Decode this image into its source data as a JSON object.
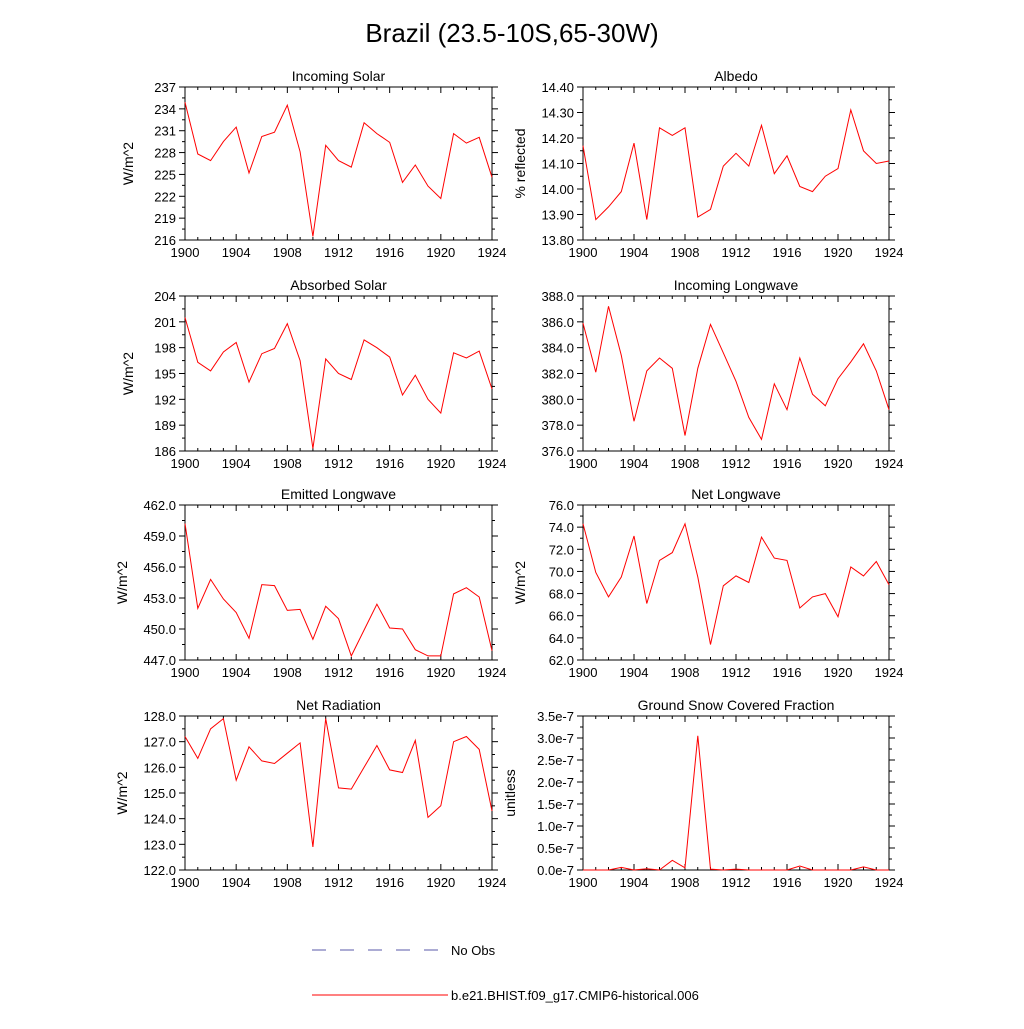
{
  "figure": {
    "title": "Brazil (23.5-10S,65-30W)",
    "legend": [
      {
        "label": "No Obs",
        "color": "#5a5aa8",
        "style": "dashed"
      },
      {
        "label": "b.e21.BHIST.f09_g17.CMIP6-historical.006",
        "color": "#ff0000",
        "style": "solid"
      }
    ]
  },
  "chart_data": [
    {
      "type": "line",
      "title": "Incoming Solar",
      "ylabel": "W/m^2",
      "xlim": [
        1900,
        1924
      ],
      "ylim": [
        216,
        237
      ],
      "xticks": [
        "1900",
        "1904",
        "1908",
        "1912",
        "1916",
        "1920",
        "1924"
      ],
      "yticks": [
        "216",
        "219",
        "222",
        "225",
        "228",
        "231",
        "234",
        "237"
      ],
      "x": [
        1900,
        1901,
        1902,
        1903,
        1904,
        1905,
        1906,
        1907,
        1908,
        1909,
        1910,
        1911,
        1912,
        1913,
        1914,
        1915,
        1916,
        1917,
        1918,
        1919,
        1920,
        1921,
        1922,
        1923,
        1924
      ],
      "series": [
        {
          "name": "b.e21.BHIST.f09_g17.CMIP6-historical.006",
          "color": "#ff0000",
          "values": [
            234.9,
            227.8,
            226.9,
            229.5,
            231.5,
            225.2,
            230.2,
            230.8,
            234.5,
            228.1,
            216.5,
            229.0,
            226.9,
            226.0,
            232.1,
            230.6,
            229.4,
            223.9,
            226.3,
            223.4,
            221.7,
            230.6,
            229.3,
            230.1,
            224.6
          ]
        }
      ]
    },
    {
      "type": "line",
      "title": "Albedo",
      "ylabel": "% reflected",
      "xlim": [
        1900,
        1924
      ],
      "ylim": [
        13.8,
        14.4
      ],
      "xticks": [
        "1900",
        "1904",
        "1908",
        "1912",
        "1916",
        "1920",
        "1924"
      ],
      "yticks": [
        "13.80",
        "13.90",
        "14.00",
        "14.10",
        "14.20",
        "14.30",
        "14.40"
      ],
      "x": [
        1900,
        1901,
        1902,
        1903,
        1904,
        1905,
        1906,
        1907,
        1908,
        1909,
        1910,
        1911,
        1912,
        1913,
        1914,
        1915,
        1916,
        1917,
        1918,
        1919,
        1920,
        1921,
        1922,
        1923,
        1924
      ],
      "series": [
        {
          "name": "b.e21.BHIST.f09_g17.CMIP6-historical.006",
          "color": "#ff0000",
          "values": [
            14.17,
            13.88,
            13.93,
            13.99,
            14.18,
            13.88,
            14.24,
            14.21,
            14.24,
            13.89,
            13.92,
            14.09,
            14.14,
            14.09,
            14.25,
            14.06,
            14.13,
            14.01,
            13.99,
            14.05,
            14.08,
            14.31,
            14.15,
            14.1,
            14.11
          ]
        }
      ]
    },
    {
      "type": "line",
      "title": "Absorbed Solar",
      "ylabel": "W/m^2",
      "xlim": [
        1900,
        1924
      ],
      "ylim": [
        186,
        204
      ],
      "xticks": [
        "1900",
        "1904",
        "1908",
        "1912",
        "1916",
        "1920",
        "1924"
      ],
      "yticks": [
        "186",
        "189",
        "192",
        "195",
        "198",
        "201",
        "204"
      ],
      "x": [
        1900,
        1901,
        1902,
        1903,
        1904,
        1905,
        1906,
        1907,
        1908,
        1909,
        1910,
        1911,
        1912,
        1913,
        1914,
        1915,
        1916,
        1917,
        1918,
        1919,
        1920,
        1921,
        1922,
        1923,
        1924
      ],
      "series": [
        {
          "name": "b.e21.BHIST.f09_g17.CMIP6-historical.006",
          "color": "#ff0000",
          "values": [
            201.5,
            196.3,
            195.3,
            197.5,
            198.6,
            194.0,
            197.3,
            197.9,
            200.8,
            196.5,
            186.3,
            196.7,
            195.0,
            194.3,
            198.9,
            198.0,
            196.9,
            192.5,
            194.8,
            192.0,
            190.4,
            197.4,
            196.8,
            197.6,
            193.2
          ]
        }
      ]
    },
    {
      "type": "line",
      "title": "Incoming Longwave",
      "ylabel": "",
      "xlim": [
        1900,
        1924
      ],
      "ylim": [
        376,
        388
      ],
      "xticks": [
        "1900",
        "1904",
        "1908",
        "1912",
        "1916",
        "1920",
        "1924"
      ],
      "yticks": [
        "376.0",
        "378.0",
        "380.0",
        "382.0",
        "384.0",
        "386.0",
        "388.0"
      ],
      "x": [
        1900,
        1901,
        1902,
        1903,
        1904,
        1905,
        1906,
        1907,
        1908,
        1909,
        1910,
        1911,
        1912,
        1913,
        1914,
        1915,
        1916,
        1917,
        1918,
        1919,
        1920,
        1921,
        1922,
        1923,
        1924
      ],
      "series": [
        {
          "name": "b.e21.BHIST.f09_g17.CMIP6-historical.006",
          "color": "#ff0000",
          "values": [
            385.9,
            382.1,
            387.2,
            383.4,
            378.3,
            382.2,
            383.2,
            382.4,
            377.2,
            382.4,
            385.8,
            383.6,
            381.4,
            378.6,
            376.9,
            381.2,
            379.2,
            383.2,
            380.4,
            379.5,
            381.6,
            382.9,
            384.3,
            382.2,
            379.2
          ]
        }
      ]
    },
    {
      "type": "line",
      "title": "Emitted Longwave",
      "ylabel": "W/m^2",
      "xlim": [
        1900,
        1924
      ],
      "ylim": [
        447,
        462
      ],
      "xticks": [
        "1900",
        "1904",
        "1908",
        "1912",
        "1916",
        "1920",
        "1924"
      ],
      "yticks": [
        "447.0",
        "450.0",
        "453.0",
        "456.0",
        "459.0",
        "462.0"
      ],
      "x": [
        1900,
        1901,
        1902,
        1903,
        1904,
        1905,
        1906,
        1907,
        1908,
        1909,
        1910,
        1911,
        1912,
        1913,
        1914,
        1915,
        1916,
        1917,
        1918,
        1919,
        1920,
        1921,
        1922,
        1923,
        1924
      ],
      "series": [
        {
          "name": "b.e21.BHIST.f09_g17.CMIP6-historical.006",
          "color": "#ff0000",
          "values": [
            460.2,
            452.0,
            454.8,
            452.9,
            451.6,
            449.1,
            454.3,
            454.2,
            451.8,
            451.9,
            449.0,
            452.2,
            451.0,
            447.4,
            449.9,
            452.4,
            450.1,
            450.0,
            448.0,
            447.4,
            447.4,
            453.4,
            454.0,
            453.1,
            447.9
          ]
        }
      ]
    },
    {
      "type": "line",
      "title": "Net Longwave",
      "ylabel": "W/m^2",
      "xlim": [
        1900,
        1924
      ],
      "ylim": [
        62,
        76
      ],
      "xticks": [
        "1900",
        "1904",
        "1908",
        "1912",
        "1916",
        "1920",
        "1924"
      ],
      "yticks": [
        "62.0",
        "64.0",
        "66.0",
        "68.0",
        "70.0",
        "72.0",
        "74.0",
        "76.0"
      ],
      "x": [
        1900,
        1901,
        1902,
        1903,
        1904,
        1905,
        1906,
        1907,
        1908,
        1909,
        1910,
        1911,
        1912,
        1913,
        1914,
        1915,
        1916,
        1917,
        1918,
        1919,
        1920,
        1921,
        1922,
        1923,
        1924
      ],
      "series": [
        {
          "name": "b.e21.BHIST.f09_g17.CMIP6-historical.006",
          "color": "#ff0000",
          "values": [
            74.3,
            69.9,
            67.7,
            69.5,
            73.2,
            67.1,
            71.0,
            71.7,
            74.3,
            69.5,
            63.4,
            68.7,
            69.6,
            69.0,
            73.1,
            71.2,
            71.0,
            66.7,
            67.7,
            68.0,
            65.9,
            70.4,
            69.6,
            70.9,
            68.8
          ]
        }
      ]
    },
    {
      "type": "line",
      "title": "Net Radiation",
      "ylabel": "W/m^2",
      "xlim": [
        1900,
        1924
      ],
      "ylim": [
        122,
        128
      ],
      "xticks": [
        "1900",
        "1904",
        "1908",
        "1912",
        "1916",
        "1920",
        "1924"
      ],
      "yticks": [
        "122.0",
        "123.0",
        "124.0",
        "125.0",
        "126.0",
        "127.0",
        "128.0"
      ],
      "x": [
        1900,
        1901,
        1902,
        1903,
        1904,
        1905,
        1906,
        1907,
        1908,
        1909,
        1910,
        1911,
        1912,
        1913,
        1914,
        1915,
        1916,
        1917,
        1918,
        1919,
        1920,
        1921,
        1922,
        1923,
        1924
      ],
      "series": [
        {
          "name": "b.e21.BHIST.f09_g17.CMIP6-historical.006",
          "color": "#ff0000",
          "values": [
            127.2,
            126.35,
            127.5,
            127.9,
            125.5,
            126.8,
            126.25,
            126.15,
            126.55,
            126.95,
            122.9,
            127.9,
            125.2,
            125.15,
            126.0,
            126.85,
            125.9,
            125.8,
            127.05,
            124.05,
            124.5,
            127.0,
            127.2,
            126.7,
            124.3
          ]
        }
      ]
    },
    {
      "type": "line",
      "title": "Ground Snow Covered Fraction",
      "ylabel": "unitless",
      "xlim": [
        1900,
        1924
      ],
      "ylim": [
        0,
        3.5
      ],
      "yscale_note": "e-7",
      "xticks": [
        "1900",
        "1904",
        "1908",
        "1912",
        "1916",
        "1920",
        "1924"
      ],
      "yticks": [
        "0.0e-7",
        "0.5e-7",
        "1.0e-7",
        "1.5e-7",
        "2.0e-7",
        "2.5e-7",
        "3.0e-7",
        "3.5e-7"
      ],
      "x": [
        1900,
        1901,
        1902,
        1903,
        1904,
        1905,
        1906,
        1907,
        1908,
        1909,
        1910,
        1911,
        1912,
        1913,
        1914,
        1915,
        1916,
        1917,
        1918,
        1919,
        1920,
        1921,
        1922,
        1923,
        1924
      ],
      "series": [
        {
          "name": "b.e21.BHIST.f09_g17.CMIP6-historical.006",
          "color": "#ff0000",
          "values": [
            0,
            0,
            0,
            0.06,
            0,
            0.03,
            0,
            0.22,
            0.05,
            3.05,
            0.02,
            0,
            0.02,
            0,
            0,
            0,
            0,
            0.09,
            0,
            0,
            0,
            0,
            0.07,
            0,
            0
          ]
        }
      ]
    }
  ]
}
